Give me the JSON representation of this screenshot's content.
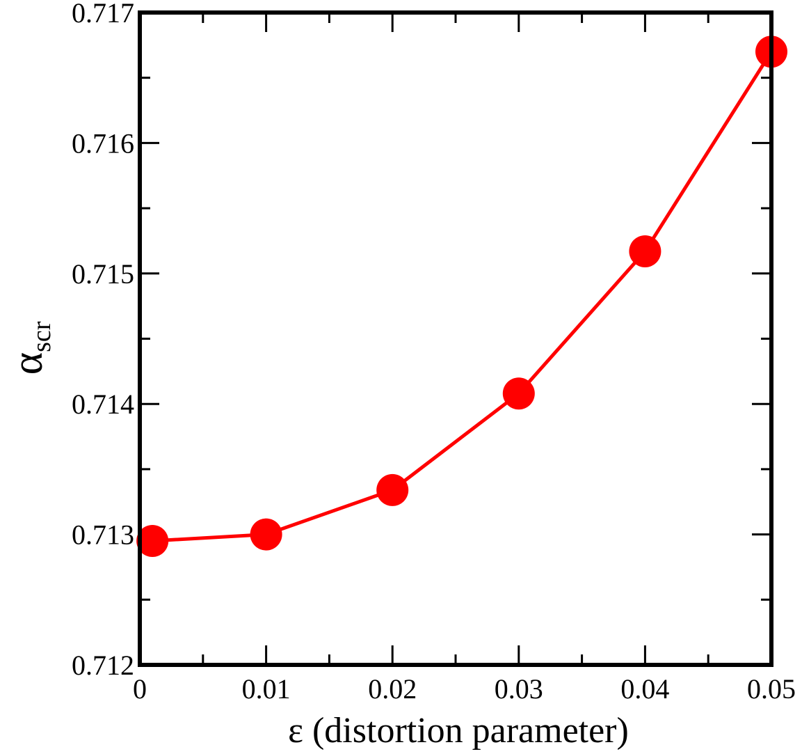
{
  "chart_data": {
    "type": "line",
    "title": "",
    "xlabel": "ε (distortion parameter)",
    "ylabel": {
      "main": "α",
      "subscript": "scr"
    },
    "xlim": [
      0,
      0.05
    ],
    "ylim": [
      0.712,
      0.717
    ],
    "x_ticks": [
      0,
      0.01,
      0.02,
      0.03,
      0.04,
      0.05
    ],
    "x_tick_labels": [
      "0",
      "0.01",
      "0.02",
      "0.03",
      "0.04",
      "0.05"
    ],
    "y_ticks": [
      0.712,
      0.713,
      0.714,
      0.715,
      0.716,
      0.717
    ],
    "y_tick_labels": [
      "0.712",
      "0.713",
      "0.714",
      "0.715",
      "0.716",
      "0.717"
    ],
    "grid": false,
    "series": [
      {
        "color": "#ff0000",
        "marker": "circle",
        "points": [
          {
            "x": 0.001,
            "y": 0.71295
          },
          {
            "x": 0.01,
            "y": 0.713
          },
          {
            "x": 0.02,
            "y": 0.71334
          },
          {
            "x": 0.03,
            "y": 0.71408
          },
          {
            "x": 0.04,
            "y": 0.71517
          },
          {
            "x": 0.05,
            "y": 0.7167
          }
        ]
      }
    ]
  }
}
